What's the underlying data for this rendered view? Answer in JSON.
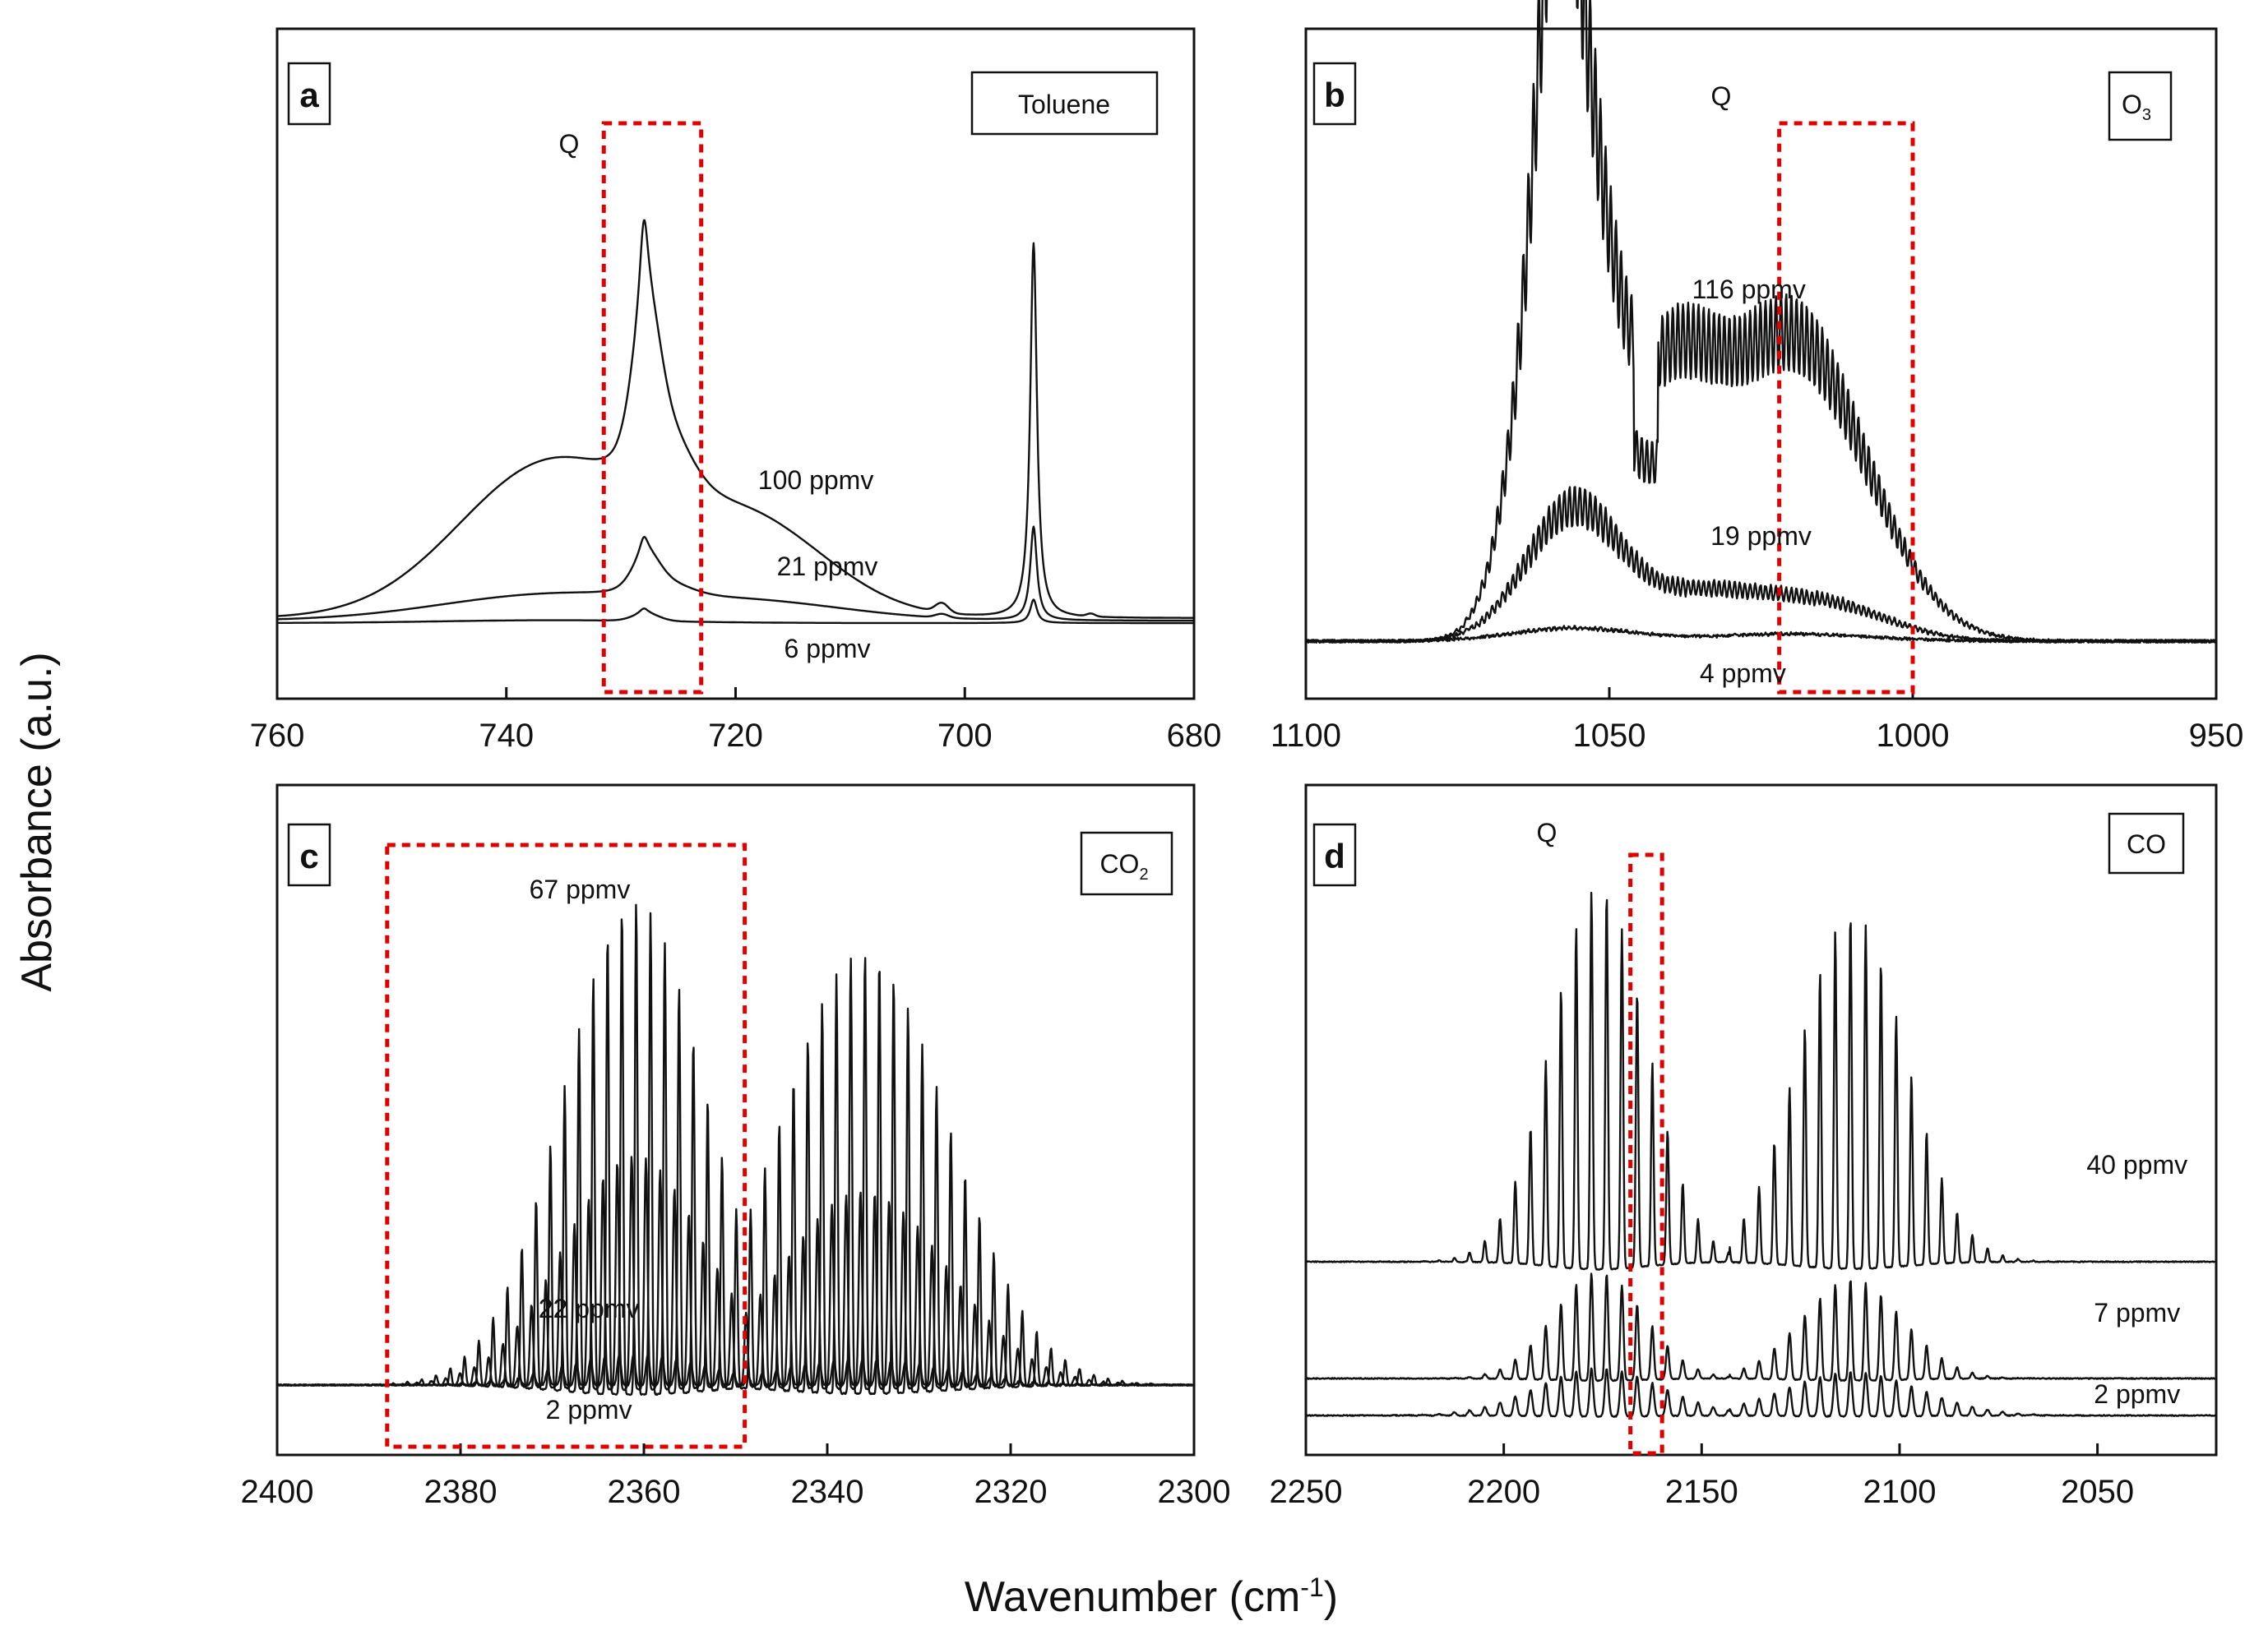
{
  "figure": {
    "ylabel": "Absorbance (a.u.)",
    "xlabel": "Wavenumber (cm",
    "xlabel_sup": "-1",
    "xlabel_tail": ")"
  },
  "chart_data": [
    {
      "type": "line",
      "panel": "a",
      "molecule_label": "Toluene",
      "xlim": [
        760,
        680
      ],
      "xticks": [
        760,
        740,
        720,
        700,
        680
      ],
      "q_label": "Q",
      "highlight_range": [
        731.5,
        723
      ],
      "series": [
        {
          "name": "100 ppmv",
          "label_x": 713
        },
        {
          "name": "21 ppmv",
          "label_x": 712
        },
        {
          "name": "6 ppmv",
          "label_x": 712
        }
      ]
    },
    {
      "type": "line",
      "panel": "b",
      "molecule_label": "O",
      "molecule_sub": "3",
      "xlim": [
        1100,
        950
      ],
      "xticks": [
        1100,
        1050,
        1000,
        950
      ],
      "q_label": "Q",
      "highlight_range": [
        1022,
        1000
      ],
      "series": [
        {
          "name": "116 ppmv",
          "label_x": 1027
        },
        {
          "name": "19 ppmv",
          "label_x": 1025
        },
        {
          "name": "4 ppmv",
          "label_x": 1028
        }
      ]
    },
    {
      "type": "line",
      "panel": "c",
      "molecule_label": "CO",
      "molecule_sub": "2",
      "xlim": [
        2400,
        2300
      ],
      "xticks": [
        2400,
        2380,
        2360,
        2340,
        2320,
        2300
      ],
      "highlight_range": [
        2388,
        2349
      ],
      "series": [
        {
          "name": "67 ppmv",
          "label_x": 2367
        },
        {
          "name": "22 ppmv",
          "label_x": 2366
        },
        {
          "name": "2 ppmv",
          "label_x": 2366
        }
      ]
    },
    {
      "type": "line",
      "panel": "d",
      "molecule_label": "CO",
      "xlim": [
        2250,
        2020
      ],
      "xticks": [
        2250,
        2200,
        2150,
        2100,
        2050
      ],
      "q_label": "Q",
      "highlight_range": [
        2168,
        2160
      ],
      "series": [
        {
          "name": "40 ppmv",
          "label_x": 2040
        },
        {
          "name": "7 ppmv",
          "label_x": 2040
        },
        {
          "name": "2 ppmv",
          "label_x": 2040
        }
      ]
    }
  ]
}
